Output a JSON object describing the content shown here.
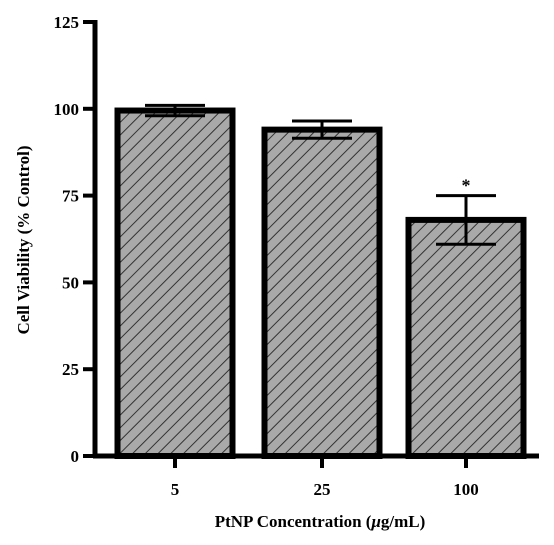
{
  "chart_data": {
    "type": "bar",
    "categories": [
      "5",
      "25",
      "100"
    ],
    "values": [
      99.5,
      94,
      68
    ],
    "errors": [
      1.5,
      2.5,
      7
    ],
    "annotations": [
      "",
      "",
      "*"
    ],
    "xlabel_parts": [
      "PtNP Concentration (",
      "μ",
      "g/mL)"
    ],
    "ylabel": "Cell Viability (% Control)",
    "ylim": [
      0,
      125
    ],
    "yticks": [
      0,
      25,
      50,
      75,
      100,
      125
    ],
    "bar_color": "#a9a9a9",
    "hatch_color": "#333333",
    "grid": false,
    "legend": "none"
  }
}
